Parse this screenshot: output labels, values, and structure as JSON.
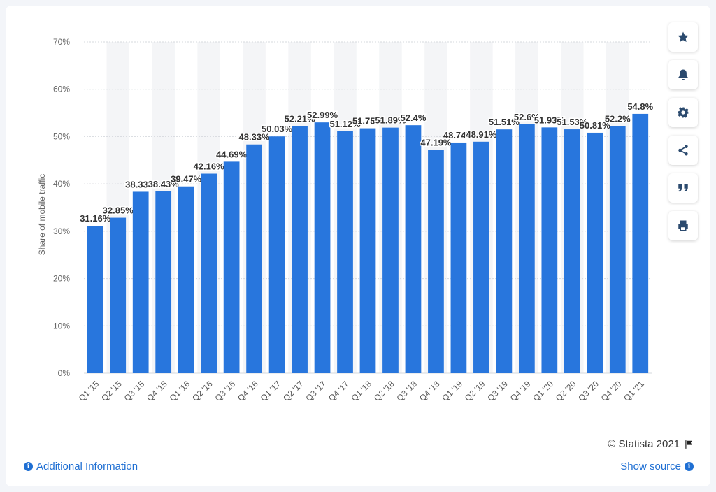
{
  "chart_data": {
    "type": "bar",
    "categories": [
      "Q1 '15",
      "Q2 '15",
      "Q3 '15",
      "Q4 '15",
      "Q1 '16",
      "Q2 '16",
      "Q3 '16",
      "Q4 '16",
      "Q1 '17",
      "Q2 '17",
      "Q3 '17",
      "Q4 '17",
      "Q1 '18",
      "Q2 '18",
      "Q3 '18",
      "Q4 '18",
      "Q1 '19",
      "Q2 '19",
      "Q3 '19",
      "Q4 '19",
      "Q1 '20",
      "Q2 '20",
      "Q3 '20",
      "Q4 '20",
      "Q1 '21"
    ],
    "values": [
      31.16,
      32.85,
      38.33,
      38.43,
      39.47,
      42.16,
      44.69,
      48.33,
      50.03,
      52.21,
      52.99,
      51.12,
      51.75,
      51.89,
      52.4,
      47.19,
      48.74,
      48.91,
      51.51,
      52.6,
      51.93,
      51.53,
      50.81,
      52.2,
      54.8
    ],
    "labels": [
      "31.16%",
      "32.85%",
      "38.33%",
      "38.43%",
      "39.47%",
      "42.16%",
      "44.69%",
      "48.33%",
      "50.03%",
      "52.21%",
      "52.99%",
      "51.12%",
      "51.75%",
      "51.89%",
      "52.4%",
      "47.19%",
      "48.74%",
      "48.91%",
      "51.51%",
      "52.6%",
      "51.93%",
      "51.53%",
      "50.81%",
      "52.2%",
      "54.8%"
    ],
    "title": "",
    "xlabel": "",
    "ylabel": "Share of mobile traffic",
    "ylim": [
      0,
      70
    ],
    "yticks": [
      "0%",
      "10%",
      "20%",
      "30%",
      "40%",
      "50%",
      "60%",
      "70%"
    ],
    "grid": true,
    "bar_color": "#2876dd"
  },
  "toolbar": {
    "buttons": [
      {
        "name": "star-icon"
      },
      {
        "name": "bell-icon"
      },
      {
        "name": "gear-icon"
      },
      {
        "name": "share-icon"
      },
      {
        "name": "quote-icon"
      },
      {
        "name": "print-icon"
      }
    ]
  },
  "footer": {
    "copyright": "© Statista 2021",
    "additional_info": "Additional Information",
    "show_source": "Show source"
  },
  "colors": {
    "accent": "#1f6fd3",
    "bar": "#2876dd",
    "stripe": "#f4f5f7"
  }
}
